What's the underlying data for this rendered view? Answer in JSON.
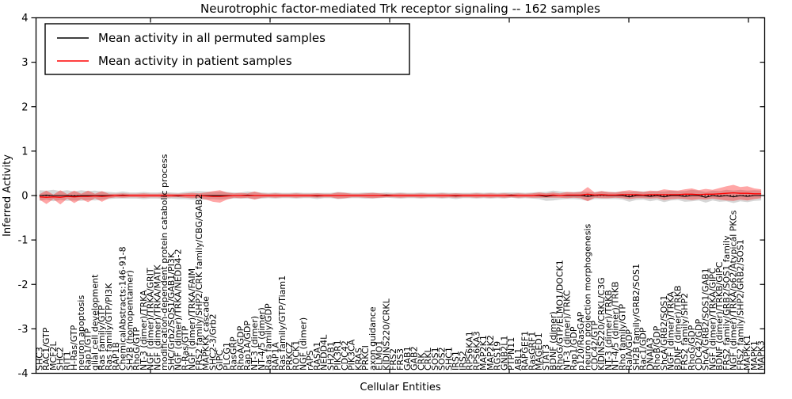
{
  "chart_data": {
    "type": "line",
    "title": "Neurotrophic factor-mediated Trk receptor signaling -- 162 samples",
    "xlabel": "Cellular Entities",
    "ylabel": "Inferred Activity",
    "ylim": [
      -4,
      4
    ],
    "ytick_labels": [
      "4",
      "3",
      "2",
      "1",
      "0",
      "-1",
      "-2",
      "-3",
      "-4"
    ],
    "ytick_values": [
      4,
      3,
      2,
      1,
      0,
      -1,
      -2,
      -3,
      -4
    ],
    "grid": false,
    "zero_line_style": "dotted",
    "legend_position": "upper-left",
    "legend": [
      {
        "label": "Mean activity in all permuted samples",
        "color": "#000000"
      },
      {
        "label": "Mean activity in patient samples",
        "color": "#ff0000"
      }
    ],
    "colors": {
      "permuted_line": "#000000",
      "permuted_band": "rgba(0,0,0,0.16)",
      "patient_line": "#ff0000",
      "patient_band": "rgba(255,0,0,0.35)",
      "axis": "#000000"
    },
    "categories": [
      "SHC3",
      "RAC1/GTP",
      "MCF2L",
      "SHC2",
      "RIT1",
      "H-Ras/GTP",
      "neuron apoptosis",
      "Rap1/GTP",
      "glial cell development",
      "Ras family/GTP",
      "Ras family/GTP/PI3K",
      "RAP1B",
      "ChemicalAbstracts:146-91-8",
      "SH2B (homopentamer)",
      "RhoG/GTP",
      "NT-3 (dimer)/TRKA",
      "NGF (dimer)/TRKA/GRIT",
      "NGF (dimer)/TRKA/MATK",
      "modification-dependent protein catabolic process",
      "SHC/Grb2/SOS1/GAB1/PI3K",
      "NGF (dimer)/TRKA/NEDD4-2",
      "R-Ras/GTP",
      "NGF (dimer)/TRKA/FAIM",
      "FRS2 family/SHP2/CRK family/CBG/GAB2",
      "MAPKKK cascade",
      "SHC2-3/Grb2",
      "GIPC",
      "PLCG1",
      "RasGRP",
      "RhoA/GDP",
      "Rap1A/GDP",
      "NT-3 (dimer)",
      "NT-4/5 (dimer)",
      "Ras family/GDP",
      "RAP1A",
      "Ras family/GTP/Tiam1",
      "PRKCZ",
      "ROCK1",
      "NGF (dimer)",
      "rAPS",
      "RASA1",
      "NEDD4L",
      "SH2B1",
      "PIK3R1",
      "CDC42",
      "PIK3CA",
      "KRAS",
      "PRKCI",
      "axon guidance",
      "ELMO1",
      "KIDINS220/CRKL",
      "FRS2",
      "FRS3",
      "GAB1",
      "GAB2",
      "CRK",
      "CRKL",
      "SOS1",
      "SOS2",
      "SHC1",
      "IRS1",
      "IRS2",
      "RPS6KA1",
      "RPS6KA3",
      "MAP2K1",
      "MAP2K2",
      "RGS19",
      "GNB2L1",
      "PTPN11",
      "ABL1",
      "RAPGEF1",
      "RasGRF1",
      "MAGED1",
      "STAT3",
      "BDNF (dimer)",
      "RhoG/GTP/ELMO1/DOCK1",
      "NT-3 (dimer)/TRKC",
      "Rap1/GDP",
      "p120/RasGAP",
      "neuron projection morphogenesis",
      "CDC42/GTP",
      "KIDINS220/CRKL/C3G",
      "NT-3 (dimer)/TRKB",
      "NT-4/5 (dimer)/TRKB",
      "Rho family/GTP",
      "RalA/GDP",
      "SH2B family/GRB2/SOS1",
      "Rac1/GDP",
      "DNAJA3",
      "RhoB/GDP",
      "ShcA/GRB2/SOS1",
      "NGF (dimer)/TRKA",
      "BDNF (dimer)/TRKB",
      "FRS2 family/SHP2",
      "RhoG/GDP",
      "CDC42/GDP",
      "ShcA/GRB2/SOS1/GAB1",
      "NGF (dimer)/TRKA/GIPC",
      "BDNF (dimer)/TRKB/GIPC",
      "FRS2 family/GRB2/SOS1 family",
      "NGF (dimer)/TRKA/p62/Atypical PKCs",
      "FRS2 family/SHP2/GRB2/SOS1",
      "MAPKK1",
      "MAPK1",
      "MAPK3"
    ],
    "series": [
      {
        "name": "Mean activity in all permuted samples",
        "values": [
          0,
          0.01,
          0,
          0,
          0,
          -0.01,
          0,
          0,
          0,
          0,
          0,
          0,
          0.01,
          0,
          0,
          0,
          0,
          0,
          0,
          0,
          -0.01,
          0,
          0,
          0,
          0,
          0,
          0,
          0,
          0,
          0,
          0.01,
          0,
          0,
          0,
          0,
          0,
          0,
          0,
          0,
          0,
          -0.01,
          0,
          0,
          0,
          0,
          0,
          0,
          0,
          0,
          0,
          0.01,
          0,
          0,
          0,
          0,
          0,
          0,
          0,
          0,
          0,
          -0.01,
          0,
          0,
          0,
          0,
          0,
          0,
          0,
          0.01,
          0,
          0,
          0,
          0,
          -0.02,
          0,
          0,
          0,
          0,
          0,
          -0.02,
          0,
          0.01,
          0,
          0,
          0,
          -0.03,
          0,
          0,
          -0.02,
          0,
          -0.03,
          0,
          0,
          -0.02,
          0,
          0,
          -0.04,
          0,
          -0.02,
          0,
          -0.03,
          0,
          -0.02,
          0,
          0
        ],
        "band_halfwidth": [
          0.12,
          0.1,
          0.13,
          0.1,
          0.12,
          0.1,
          0.12,
          0.1,
          0.11,
          0.09,
          0.08,
          0.07,
          0.08,
          0.07,
          0.07,
          0.08,
          0.07,
          0.07,
          0.08,
          0.07,
          0.07,
          0.08,
          0.09,
          0.1,
          0.09,
          0.08,
          0.09,
          0.08,
          0.07,
          0.07,
          0.08,
          0.08,
          0.07,
          0.06,
          0.07,
          0.06,
          0.06,
          0.07,
          0.06,
          0.06,
          0.07,
          0.06,
          0.06,
          0.08,
          0.07,
          0.06,
          0.06,
          0.07,
          0.07,
          0.06,
          0.06,
          0.06,
          0.07,
          0.06,
          0.06,
          0.07,
          0.06,
          0.06,
          0.07,
          0.06,
          0.07,
          0.06,
          0.06,
          0.07,
          0.06,
          0.07,
          0.06,
          0.07,
          0.06,
          0.07,
          0.06,
          0.07,
          0.08,
          0.1,
          0.11,
          0.09,
          0.08,
          0.08,
          0.09,
          0.1,
          0.08,
          0.09,
          0.08,
          0.08,
          0.09,
          0.11,
          0.1,
          0.09,
          0.11,
          0.1,
          0.12,
          0.11,
          0.1,
          0.12,
          0.13,
          0.11,
          0.12,
          0.11,
          0.12,
          0.13,
          0.14,
          0.13,
          0.13,
          0.12,
          0.11
        ]
      },
      {
        "name": "Mean activity in patient samples",
        "values": [
          -0.03,
          -0.04,
          -0.03,
          -0.04,
          -0.02,
          -0.03,
          -0.02,
          -0.02,
          -0.01,
          -0.02,
          -0.01,
          0,
          0,
          0,
          0,
          0,
          0,
          0,
          0,
          0,
          0,
          0,
          0,
          0,
          -0.01,
          -0.02,
          -0.02,
          -0.01,
          0,
          0,
          0,
          0,
          0,
          0,
          0,
          0,
          0,
          0,
          0,
          0,
          0,
          0,
          0,
          0,
          0,
          0,
          0,
          0,
          0,
          0,
          0,
          0,
          0,
          0,
          0,
          0,
          0,
          0,
          0,
          0,
          0,
          0,
          0,
          0,
          0,
          0,
          0,
          0,
          0,
          0,
          0,
          0,
          0.01,
          0,
          0.01,
          0,
          0.01,
          0.01,
          0.01,
          0.03,
          0.01,
          0.02,
          0.01,
          0.01,
          0.02,
          0.02,
          0.02,
          0.01,
          0.02,
          0.02,
          0.02,
          0.02,
          0.02,
          0.03,
          0.03,
          0.02,
          0.03,
          0.03,
          0.04,
          0.05,
          0.06,
          0.05,
          0.05,
          0.04,
          0.04
        ],
        "band_halfwidth": [
          0.06,
          0.15,
          0.05,
          0.16,
          0.05,
          0.14,
          0.06,
          0.13,
          0.05,
          0.12,
          0.05,
          0.04,
          0.05,
          0.04,
          0.04,
          0.05,
          0.04,
          0.04,
          0.05,
          0.04,
          0.04,
          0.05,
          0.06,
          0.05,
          0.08,
          0.12,
          0.14,
          0.08,
          0.05,
          0.06,
          0.05,
          0.09,
          0.05,
          0.04,
          0.05,
          0.04,
          0.04,
          0.05,
          0.04,
          0.04,
          0.05,
          0.04,
          0.04,
          0.07,
          0.06,
          0.04,
          0.04,
          0.05,
          0.06,
          0.05,
          0.04,
          0.04,
          0.05,
          0.04,
          0.04,
          0.05,
          0.04,
          0.04,
          0.05,
          0.04,
          0.05,
          0.04,
          0.04,
          0.05,
          0.04,
          0.05,
          0.04,
          0.05,
          0.04,
          0.05,
          0.04,
          0.05,
          0.06,
          0.05,
          0.06,
          0.05,
          0.07,
          0.06,
          0.07,
          0.16,
          0.06,
          0.08,
          0.07,
          0.06,
          0.08,
          0.1,
          0.08,
          0.07,
          0.09,
          0.08,
          0.12,
          0.1,
          0.09,
          0.11,
          0.13,
          0.1,
          0.12,
          0.1,
          0.13,
          0.16,
          0.18,
          0.14,
          0.16,
          0.12,
          0.1
        ]
      }
    ]
  }
}
